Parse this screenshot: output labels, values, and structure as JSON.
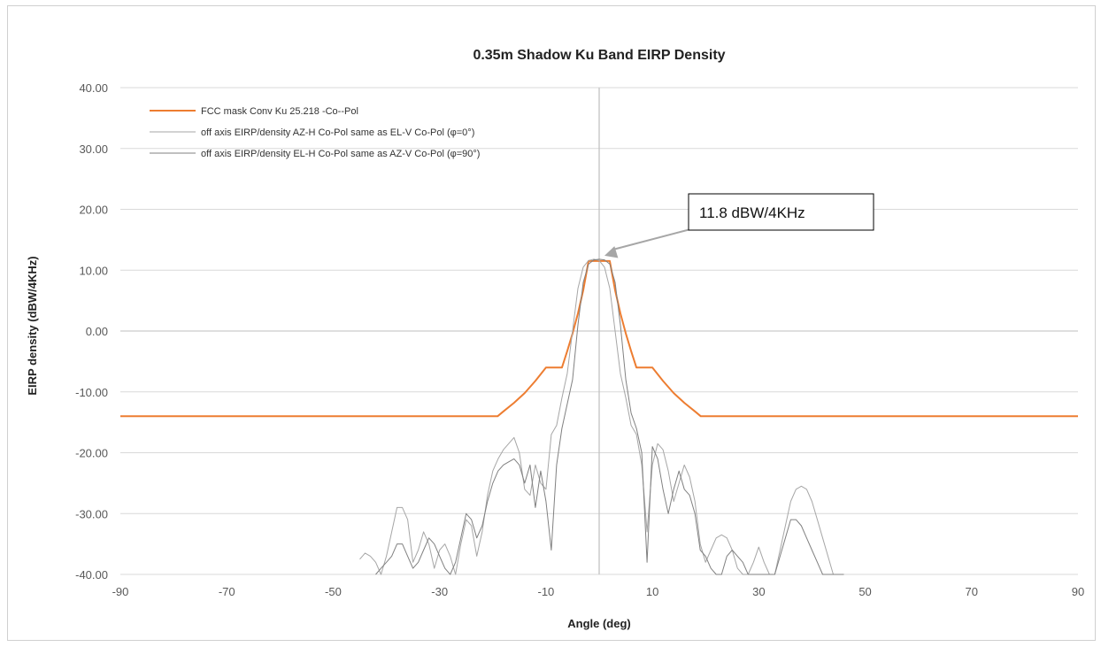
{
  "chart_data": {
    "type": "line",
    "title": "0.35m Shadow Ku Band EIRP Density",
    "xlabel": "Angle (deg)",
    "ylabel": "EIRP density (dBW/4KHz)",
    "xlim": [
      -90,
      90
    ],
    "ylim": [
      -40,
      40
    ],
    "x_ticks": [
      "-90",
      "-70",
      "-50",
      "-30",
      "-10",
      "10",
      "30",
      "50",
      "70",
      "90"
    ],
    "y_ticks": [
      "40.00",
      "30.00",
      "20.00",
      "10.00",
      "0.00",
      "-10.00",
      "-20.00",
      "-30.00",
      "-40.00"
    ],
    "grid": "horizontal",
    "legend_position": "top-left",
    "annotation": {
      "text": "11.8 dBW/4KHz",
      "x": 0,
      "y": 11.8
    },
    "series": [
      {
        "name": "FCC mask Conv Ku 25.218 -Co--Pol",
        "color": "#ed7d31",
        "x": [
          -90,
          -19.1,
          -18,
          -16,
          -14,
          -12,
          -10,
          -9.2,
          -7,
          -6,
          -5,
          -4,
          -3,
          -2,
          -1.5,
          1.5,
          2,
          3,
          4,
          5,
          6,
          7,
          9.2,
          10,
          12,
          14,
          16,
          18,
          19.1,
          90
        ],
        "y": [
          -14,
          -14,
          -13.2,
          -11.8,
          -10.2,
          -8.2,
          -6,
          -6,
          -6,
          -3.3,
          -0.4,
          2.9,
          6.7,
          11.5,
          11.5,
          11.5,
          11.5,
          6.7,
          2.9,
          -0.4,
          -3.3,
          -6,
          -6,
          -6,
          -8.2,
          -10.2,
          -11.8,
          -13.2,
          -14,
          -14
        ]
      },
      {
        "name": "off axis EIRP/density AZ-H Co-Pol same as EL-V Co-Pol (φ=0°)",
        "color": "#a6a6a6",
        "x": [
          -45,
          -44,
          -43,
          -42,
          -41,
          -40,
          -39,
          -38,
          -37,
          -36,
          -35,
          -34,
          -33,
          -32,
          -31,
          -30,
          -29,
          -28,
          -27,
          -26,
          -25,
          -24,
          -23,
          -22,
          -21,
          -20,
          -19,
          -18,
          -17,
          -16,
          -15,
          -14,
          -13,
          -12,
          -11,
          -10,
          -9,
          -8,
          -7,
          -6,
          -5,
          -4,
          -3,
          -2,
          -1,
          0,
          1,
          2,
          3,
          4,
          5,
          6,
          7,
          8,
          9,
          10,
          11,
          12,
          13,
          14,
          15,
          16,
          17,
          18,
          19,
          20,
          21,
          22,
          23,
          24,
          25,
          26,
          27,
          28,
          29,
          30,
          31,
          32,
          33,
          34,
          35,
          36,
          37,
          38,
          39,
          40,
          41,
          42,
          43,
          44,
          45
        ],
        "y": [
          -37.5,
          -36.5,
          -37,
          -38,
          -40,
          -37,
          -33,
          -29,
          -29,
          -31,
          -38,
          -36,
          -33,
          -35,
          -39,
          -36,
          -35,
          -37,
          -40,
          -35,
          -31,
          -32,
          -37,
          -33,
          -27,
          -23,
          -21,
          -19.5,
          -18.5,
          -17.5,
          -20,
          -26,
          -27,
          -22,
          -25,
          -26,
          -17,
          -15.5,
          -11,
          -7,
          0,
          7,
          10.5,
          11.6,
          11.8,
          11.6,
          10.5,
          7,
          0,
          -7,
          -11,
          -15.5,
          -17,
          -22,
          -33,
          -22,
          -18.5,
          -19.5,
          -23,
          -28,
          -25,
          -22,
          -24,
          -28,
          -35,
          -38,
          -36,
          -34,
          -33.5,
          -34,
          -36,
          -39,
          -40,
          -40,
          -38,
          -35.5,
          -38,
          -40,
          -40,
          -36,
          -32,
          -28,
          -26,
          -25.5,
          -26,
          -28,
          -31,
          -34,
          -37,
          -40,
          -40
        ]
      },
      {
        "name": "off axis EIRP/density EL-H Co-Pol same as AZ-V Co-Pol (φ=90°)",
        "color": "#808080",
        "x": [
          -42,
          -41,
          -40,
          -39,
          -38,
          -37,
          -36,
          -35,
          -34,
          -33,
          -32,
          -31,
          -30,
          -29,
          -28,
          -27,
          -26,
          -25,
          -24,
          -23,
          -22,
          -21,
          -20,
          -19,
          -18,
          -17,
          -16,
          -15,
          -14,
          -13,
          -12,
          -11,
          -10,
          -9,
          -8,
          -7,
          -6,
          -5,
          -4,
          -3,
          -2,
          -1,
          0,
          1,
          2,
          3,
          4,
          5,
          6,
          7,
          8,
          9,
          10,
          11,
          12,
          13,
          14,
          15,
          16,
          17,
          18,
          19,
          20,
          21,
          22,
          23,
          24,
          25,
          26,
          27,
          28,
          29,
          30,
          31,
          32,
          33,
          34,
          35,
          36,
          37,
          38,
          39,
          40,
          41,
          42,
          43,
          44,
          45,
          46
        ],
        "y": [
          -40,
          -39,
          -38,
          -37,
          -35,
          -35,
          -37,
          -39,
          -38,
          -36,
          -34,
          -35,
          -37,
          -39,
          -40,
          -38,
          -34,
          -30,
          -31,
          -34,
          -32,
          -28,
          -25,
          -23,
          -22,
          -21.5,
          -21,
          -22,
          -25,
          -22,
          -29,
          -23,
          -28,
          -36,
          -22,
          -16,
          -12,
          -8,
          1,
          8,
          11,
          11.7,
          11.8,
          11.7,
          11,
          8,
          1,
          -8,
          -13.5,
          -16,
          -20,
          -38,
          -19,
          -21,
          -26,
          -30,
          -26,
          -23,
          -26,
          -27,
          -30,
          -36,
          -37,
          -39,
          -40,
          -40,
          -37,
          -36,
          -37,
          -38,
          -40,
          -40,
          -40,
          -40,
          -40,
          -40,
          -37,
          -34,
          -31,
          -31,
          -32,
          -34,
          -36,
          -38,
          -40,
          -40,
          -40,
          -40,
          -40
        ]
      }
    ]
  }
}
